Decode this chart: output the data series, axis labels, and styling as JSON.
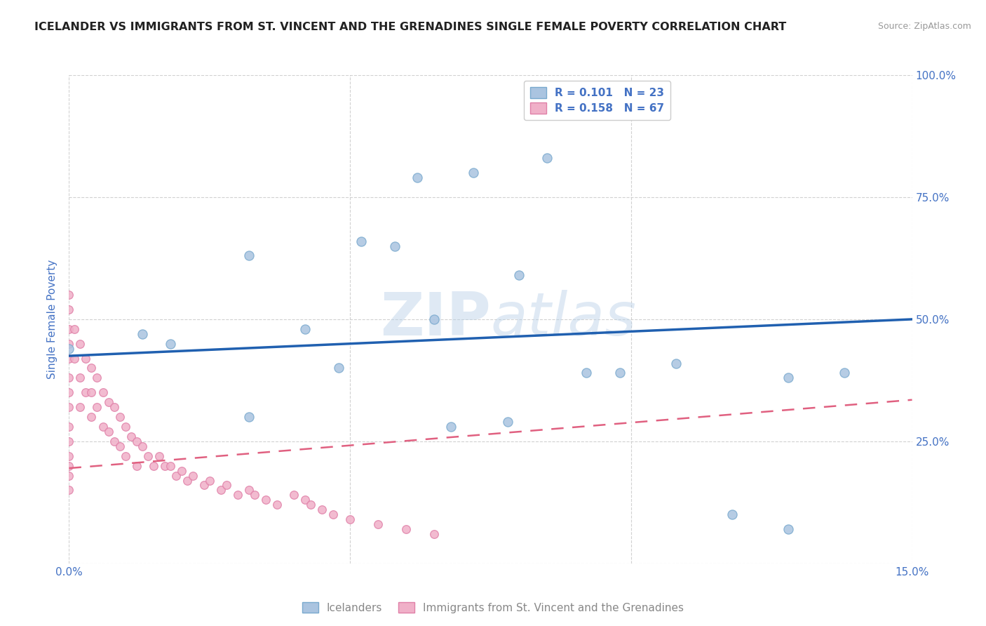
{
  "title": "ICELANDER VS IMMIGRANTS FROM ST. VINCENT AND THE GRENADINES SINGLE FEMALE POVERTY CORRELATION CHART",
  "source": "Source: ZipAtlas.com",
  "ylabel": "Single Female Poverty",
  "xlim": [
    0.0,
    0.15
  ],
  "ylim": [
    0.0,
    1.0
  ],
  "xticks": [
    0.0,
    0.05,
    0.1,
    0.15
  ],
  "xticklabels": [
    "0.0%",
    "",
    "",
    "15.0%"
  ],
  "yticks": [
    0.0,
    0.25,
    0.5,
    0.75,
    1.0
  ],
  "yticklabels_right": [
    "",
    "25.0%",
    "50.0%",
    "75.0%",
    "100.0%"
  ],
  "blue_R": 0.101,
  "blue_N": 23,
  "pink_R": 0.158,
  "pink_N": 67,
  "blue_color": "#aac4e0",
  "pink_color": "#f0b0c8",
  "blue_edge_color": "#7aaace",
  "pink_edge_color": "#e080a8",
  "blue_line_color": "#2060b0",
  "pink_line_color": "#e06080",
  "legend_text_color": "#4472c4",
  "watermark": "ZIPatlas",
  "blue_scatter_x": [
    0.0,
    0.013,
    0.018,
    0.032,
    0.032,
    0.042,
    0.048,
    0.052,
    0.058,
    0.062,
    0.065,
    0.068,
    0.072,
    0.078,
    0.08,
    0.085,
    0.092,
    0.098,
    0.108,
    0.118,
    0.128,
    0.138,
    0.128
  ],
  "blue_scatter_y": [
    0.44,
    0.47,
    0.45,
    0.63,
    0.3,
    0.48,
    0.4,
    0.66,
    0.65,
    0.79,
    0.5,
    0.28,
    0.8,
    0.29,
    0.59,
    0.83,
    0.39,
    0.39,
    0.41,
    0.1,
    0.07,
    0.39,
    0.38
  ],
  "pink_scatter_x": [
    0.0,
    0.0,
    0.0,
    0.0,
    0.0,
    0.0,
    0.0,
    0.0,
    0.0,
    0.0,
    0.0,
    0.0,
    0.0,
    0.0,
    0.001,
    0.001,
    0.002,
    0.002,
    0.002,
    0.003,
    0.003,
    0.004,
    0.004,
    0.004,
    0.005,
    0.005,
    0.006,
    0.006,
    0.007,
    0.007,
    0.008,
    0.008,
    0.009,
    0.009,
    0.01,
    0.01,
    0.011,
    0.012,
    0.012,
    0.013,
    0.014,
    0.015,
    0.016,
    0.017,
    0.018,
    0.019,
    0.02,
    0.021,
    0.022,
    0.024,
    0.025,
    0.027,
    0.028,
    0.03,
    0.032,
    0.033,
    0.035,
    0.037,
    0.04,
    0.042,
    0.043,
    0.045,
    0.047,
    0.05,
    0.055,
    0.06,
    0.065
  ],
  "pink_scatter_y": [
    0.55,
    0.52,
    0.48,
    0.45,
    0.42,
    0.38,
    0.35,
    0.32,
    0.28,
    0.25,
    0.22,
    0.2,
    0.18,
    0.15,
    0.48,
    0.42,
    0.45,
    0.38,
    0.32,
    0.42,
    0.35,
    0.4,
    0.35,
    0.3,
    0.38,
    0.32,
    0.35,
    0.28,
    0.33,
    0.27,
    0.32,
    0.25,
    0.3,
    0.24,
    0.28,
    0.22,
    0.26,
    0.25,
    0.2,
    0.24,
    0.22,
    0.2,
    0.22,
    0.2,
    0.2,
    0.18,
    0.19,
    0.17,
    0.18,
    0.16,
    0.17,
    0.15,
    0.16,
    0.14,
    0.15,
    0.14,
    0.13,
    0.12,
    0.14,
    0.13,
    0.12,
    0.11,
    0.1,
    0.09,
    0.08,
    0.07,
    0.06
  ],
  "blue_trend_x": [
    0.0,
    0.15
  ],
  "blue_trend_y": [
    0.425,
    0.5
  ],
  "pink_trend_x": [
    0.0,
    0.15
  ],
  "pink_trend_y": [
    0.195,
    0.335
  ],
  "grid_color": "#cccccc",
  "bg_color": "#ffffff",
  "title_color": "#222222",
  "tick_color": "#4472c4"
}
